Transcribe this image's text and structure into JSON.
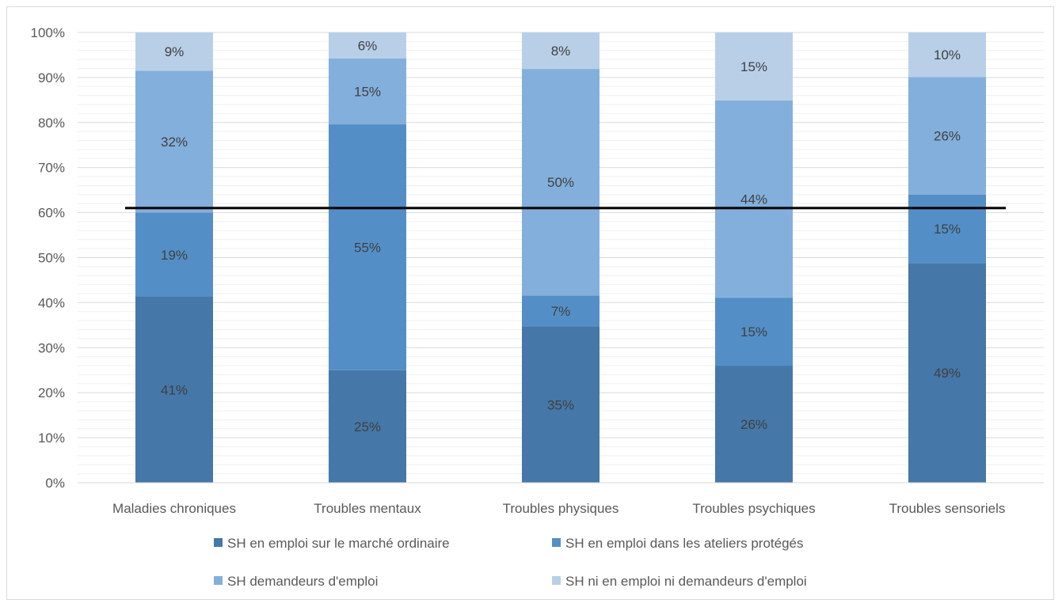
{
  "chart_data": {
    "type": "bar",
    "stacked": true,
    "categories": [
      "Maladies chroniques",
      "Troubles mentaux",
      "Troubles physiques",
      "Troubles psychiques",
      "Troubles sensoriels"
    ],
    "series": [
      {
        "name": "SH en emploi sur le marché ordinaire",
        "values": [
          41.3,
          25.0,
          34.7,
          26.0,
          48.8
        ],
        "labels": [
          "41%",
          "25%",
          "35%",
          "26%",
          "49%"
        ],
        "color": "#4577a8"
      },
      {
        "name": "SH en emploi dans les ateliers protégés",
        "values": [
          18.7,
          54.6,
          6.9,
          15.1,
          15.2
        ],
        "labels": [
          "19%",
          "55%",
          "7%",
          "15%",
          "15%"
        ],
        "color": "#538fc6"
      },
      {
        "name": "SH demandeurs d'emploi",
        "values": [
          31.5,
          14.6,
          50.3,
          43.8,
          26.1
        ],
        "labels": [
          "32%",
          "15%",
          "50%",
          "44%",
          "26%"
        ],
        "color": "#83afdc"
      },
      {
        "name": "SH ni en emploi ni demandeurs d'emploi",
        "values": [
          8.5,
          5.8,
          8.1,
          15.1,
          9.9
        ],
        "labels": [
          "9%",
          "6%",
          "8%",
          "15%",
          "10%"
        ],
        "color": "#b9cfe8"
      }
    ],
    "y_ticks": [
      "0%",
      "10%",
      "20%",
      "30%",
      "40%",
      "50%",
      "60%",
      "70%",
      "80%",
      "90%",
      "100%"
    ],
    "ylim": [
      0,
      100
    ],
    "reference_line": 61,
    "grid": true,
    "legend_position": "bottom"
  }
}
